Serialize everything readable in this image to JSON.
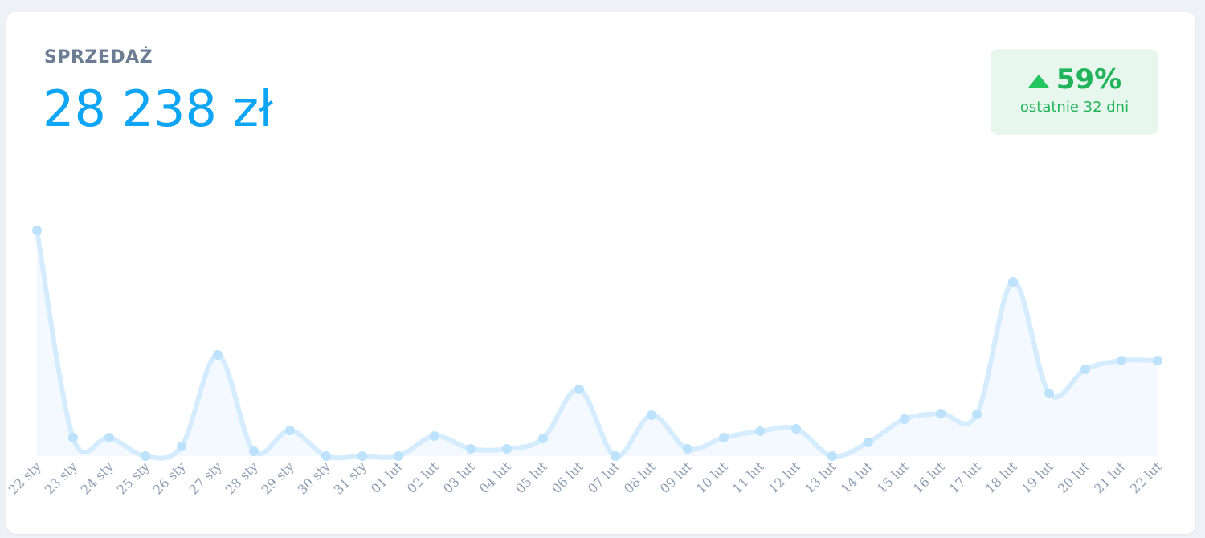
{
  "card": {
    "title": "SPRZEDAŻ",
    "total": "28 238 zł",
    "badge": {
      "change": "59%",
      "caption": "ostatnie 32 dni"
    }
  },
  "chart_data": {
    "type": "line",
    "categories": [
      "22 sty",
      "23 sty",
      "24 sty",
      "25 sty",
      "26 sty",
      "27 sty",
      "28 sty",
      "29 sty",
      "30 sty",
      "31 sty",
      "01 lut",
      "02 lut",
      "03 lut",
      "04 lut",
      "05 lut",
      "06 lut",
      "07 lut",
      "08 lut",
      "09 lut",
      "10 lut",
      "11 lut",
      "12 lut",
      "13 lut",
      "14 lut",
      "15 lut",
      "16 lut",
      "17 lut",
      "18 lut",
      "19 lut",
      "20 lut",
      "21 lut",
      "22 lut"
    ],
    "values": [
      4935,
      404,
      404,
      0,
      211,
      2213,
      105,
      562,
      0,
      0,
      0,
      439,
      158,
      158,
      386,
      1458,
      0,
      896,
      158,
      404,
      544,
      597,
      0,
      299,
      808,
      931,
      913,
      3811,
      1370,
      1897,
      2090,
      2090
    ],
    "color": "#d4ecfd"
  }
}
